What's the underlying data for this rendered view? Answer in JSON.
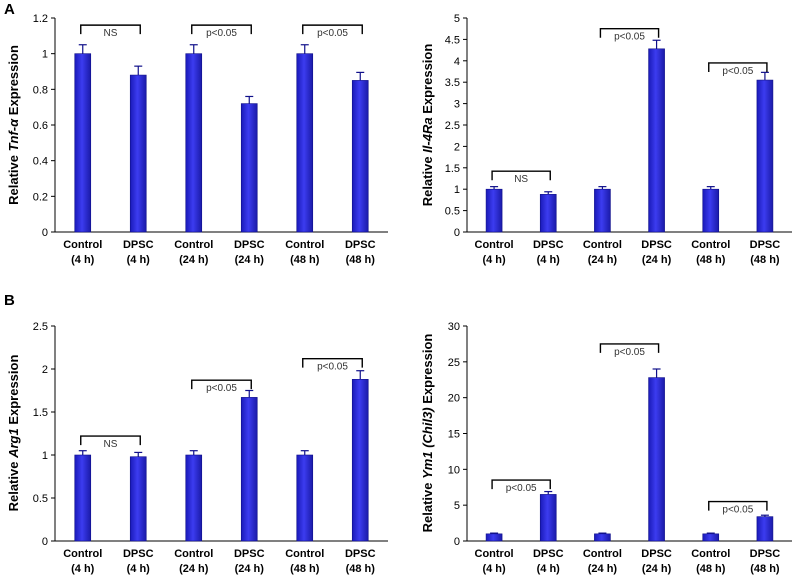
{
  "panel_labels": [
    "A",
    "B"
  ],
  "colors": {
    "bar": "#1f1fd0",
    "bar_light": "#5a5af0",
    "axis": "#000000"
  },
  "chart_data": [
    {
      "type": "bar",
      "ylabel_prefix": "Relative ",
      "ylabel_italic": "Tnf-α",
      "ylabel_suffix": " Expression",
      "categories": [
        [
          "Control",
          "(4 h)"
        ],
        [
          "DPSC",
          "(4 h)"
        ],
        [
          "Control",
          "(24 h)"
        ],
        [
          "DPSC",
          "(24 h)"
        ],
        [
          "Control",
          "(48 h)"
        ],
        [
          "DPSC",
          "(48 h)"
        ]
      ],
      "values": [
        1.0,
        0.88,
        1.0,
        0.72,
        1.0,
        0.85
      ],
      "errors": [
        0.05,
        0.05,
        0.05,
        0.04,
        0.05,
        0.045
      ],
      "ylim": [
        0,
        1.2
      ],
      "yticks": [
        0,
        0.2,
        0.4,
        0.6,
        0.8,
        1,
        1.2
      ],
      "annotations": [
        {
          "bars": [
            0,
            1
          ],
          "y": 1.16,
          "text": "NS"
        },
        {
          "bars": [
            2,
            3
          ],
          "y": 1.16,
          "text": "p<0.05"
        },
        {
          "bars": [
            4,
            5
          ],
          "y": 1.16,
          "text": "p<0.05"
        }
      ]
    },
    {
      "type": "bar",
      "ylabel_prefix": "Relative ",
      "ylabel_italic": "Il-4Ra",
      "ylabel_suffix": " Expression",
      "categories": [
        [
          "Control",
          "(4 h)"
        ],
        [
          "DPSC",
          "(4 h)"
        ],
        [
          "Control",
          "(24 h)"
        ],
        [
          "DPSC",
          "(24 h)"
        ],
        [
          "Control",
          "(48 h)"
        ],
        [
          "DPSC",
          "(48 h)"
        ]
      ],
      "values": [
        1.0,
        0.88,
        1.0,
        4.28,
        1.0,
        3.55
      ],
      "errors": [
        0.06,
        0.06,
        0.06,
        0.2,
        0.06,
        0.18
      ],
      "ylim": [
        0,
        5
      ],
      "yticks": [
        0,
        0.5,
        1,
        1.5,
        2,
        2.5,
        3,
        3.5,
        4,
        4.5,
        5
      ],
      "annotations": [
        {
          "bars": [
            0,
            1
          ],
          "y": 1.42,
          "text": "NS"
        },
        {
          "bars": [
            2,
            3
          ],
          "y": 4.75,
          "text": "p<0.05"
        },
        {
          "bars": [
            4,
            5
          ],
          "y": 3.95,
          "text": "p<0.05"
        }
      ]
    },
    {
      "type": "bar",
      "ylabel_prefix": "Relative ",
      "ylabel_italic": "Arg1",
      "ylabel_suffix": " Expression",
      "categories": [
        [
          "Control",
          "(4 h)"
        ],
        [
          "DPSC",
          "(4 h)"
        ],
        [
          "Control",
          "(24 h)"
        ],
        [
          "DPSC",
          "(24 h)"
        ],
        [
          "Control",
          "(48 h)"
        ],
        [
          "DPSC",
          "(48 h)"
        ]
      ],
      "values": [
        1.0,
        0.98,
        1.0,
        1.67,
        1.0,
        1.88
      ],
      "errors": [
        0.05,
        0.05,
        0.05,
        0.08,
        0.05,
        0.1
      ],
      "ylim": [
        0,
        2.5
      ],
      "yticks": [
        0,
        0.5,
        1,
        1.5,
        2,
        2.5
      ],
      "annotations": [
        {
          "bars": [
            0,
            1
          ],
          "y": 1.22,
          "text": "NS"
        },
        {
          "bars": [
            2,
            3
          ],
          "y": 1.87,
          "text": "p<0.05"
        },
        {
          "bars": [
            4,
            5
          ],
          "y": 2.12,
          "text": "p<0.05"
        }
      ]
    },
    {
      "type": "bar",
      "ylabel_prefix": "Relative ",
      "ylabel_italic": "Ym1 (Chil3)",
      "ylabel_suffix": " Expression",
      "categories": [
        [
          "Control",
          "(4 h)"
        ],
        [
          "DPSC",
          "(4 h)"
        ],
        [
          "Control",
          "(24 h)"
        ],
        [
          "DPSC",
          "(24 h)"
        ],
        [
          "Control",
          "(48 h)"
        ],
        [
          "DPSC",
          "(48 h)"
        ]
      ],
      "values": [
        1.0,
        6.5,
        1.0,
        22.8,
        1.0,
        3.4
      ],
      "errors": [
        0.1,
        0.4,
        0.1,
        1.2,
        0.1,
        0.2
      ],
      "ylim": [
        0,
        30
      ],
      "yticks": [
        0,
        5,
        10,
        15,
        20,
        25,
        30
      ],
      "annotations": [
        {
          "bars": [
            0,
            1
          ],
          "y": 8.5,
          "text": "p<0.05"
        },
        {
          "bars": [
            2,
            3
          ],
          "y": 27.5,
          "text": "p<0.05"
        },
        {
          "bars": [
            4,
            5
          ],
          "y": 5.5,
          "text": "p<0.05"
        }
      ]
    }
  ]
}
